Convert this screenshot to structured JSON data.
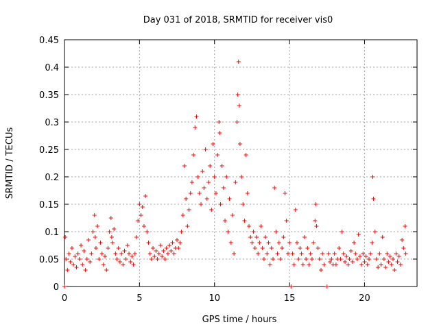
{
  "chart_data": {
    "type": "scatter",
    "title": "Day 031 of 2018, SRMTID for receiver vis0",
    "xlabel": "GPS time / hours",
    "ylabel": "SRMTID / TECUs",
    "xlim": [
      0,
      23.5
    ],
    "ylim": [
      0,
      0.45
    ],
    "xticks": [
      0,
      5,
      10,
      15,
      20
    ],
    "yticks": [
      0,
      0.05,
      0.1,
      0.15,
      0.2,
      0.25,
      0.3,
      0.35,
      0.4,
      0.45
    ],
    "ytick_labels": [
      "0",
      "0.05",
      "0.1",
      "0.15",
      "0.2",
      "0.25",
      "0.3",
      "0.35",
      "0.4",
      "0.45"
    ],
    "xtick_labels": [
      "0",
      "5",
      "10",
      "15",
      "20"
    ],
    "grid": true,
    "marker": "+",
    "marker_color": "#ff0000",
    "series": [
      {
        "name": "SRMTID",
        "points": [
          [
            0.0,
            0.0
          ],
          [
            0.05,
            0.09
          ],
          [
            0.1,
            0.05
          ],
          [
            0.2,
            0.03
          ],
          [
            0.3,
            0.06
          ],
          [
            0.4,
            0.045
          ],
          [
            0.5,
            0.07
          ],
          [
            0.6,
            0.04
          ],
          [
            0.7,
            0.055
          ],
          [
            0.8,
            0.035
          ],
          [
            0.9,
            0.06
          ],
          [
            1.0,
            0.05
          ],
          [
            1.1,
            0.075
          ],
          [
            1.2,
            0.04
          ],
          [
            1.3,
            0.065
          ],
          [
            1.4,
            0.03
          ],
          [
            1.5,
            0.05
          ],
          [
            1.6,
            0.085
          ],
          [
            1.7,
            0.045
          ],
          [
            1.8,
            0.06
          ],
          [
            1.9,
            0.1
          ],
          [
            2.0,
            0.13
          ],
          [
            2.05,
            0.09
          ],
          [
            2.1,
            0.07
          ],
          [
            2.2,
            0.11
          ],
          [
            2.3,
            0.05
          ],
          [
            2.4,
            0.08
          ],
          [
            2.5,
            0.06
          ],
          [
            2.6,
            0.04
          ],
          [
            2.7,
            0.055
          ],
          [
            2.8,
            0.03
          ],
          [
            2.9,
            0.07
          ],
          [
            3.0,
            0.1
          ],
          [
            3.1,
            0.125
          ],
          [
            3.15,
            0.09
          ],
          [
            3.2,
            0.08
          ],
          [
            3.3,
            0.105
          ],
          [
            3.4,
            0.06
          ],
          [
            3.5,
            0.05
          ],
          [
            3.6,
            0.07
          ],
          [
            3.7,
            0.045
          ],
          [
            3.8,
            0.06
          ],
          [
            3.9,
            0.04
          ],
          [
            4.0,
            0.065
          ],
          [
            4.1,
            0.05
          ],
          [
            4.2,
            0.075
          ],
          [
            4.3,
            0.06
          ],
          [
            4.4,
            0.045
          ],
          [
            4.5,
            0.055
          ],
          [
            4.6,
            0.04
          ],
          [
            4.7,
            0.06
          ],
          [
            4.8,
            0.09
          ],
          [
            4.9,
            0.12
          ],
          [
            5.0,
            0.15
          ],
          [
            5.1,
            0.13
          ],
          [
            5.2,
            0.145
          ],
          [
            5.3,
            0.11
          ],
          [
            5.4,
            0.165
          ],
          [
            5.5,
            0.1
          ],
          [
            5.6,
            0.08
          ],
          [
            5.7,
            0.06
          ],
          [
            5.8,
            0.05
          ],
          [
            5.9,
            0.07
          ],
          [
            6.0,
            0.055
          ],
          [
            6.1,
            0.065
          ],
          [
            6.2,
            0.05
          ],
          [
            6.3,
            0.06
          ],
          [
            6.4,
            0.075
          ],
          [
            6.5,
            0.055
          ],
          [
            6.6,
            0.065
          ],
          [
            6.7,
            0.05
          ],
          [
            6.8,
            0.07
          ],
          [
            6.9,
            0.06
          ],
          [
            7.0,
            0.075
          ],
          [
            7.1,
            0.065
          ],
          [
            7.2,
            0.08
          ],
          [
            7.3,
            0.06
          ],
          [
            7.4,
            0.07
          ],
          [
            7.5,
            0.085
          ],
          [
            7.6,
            0.07
          ],
          [
            7.7,
            0.08
          ],
          [
            7.8,
            0.1
          ],
          [
            7.9,
            0.13
          ],
          [
            8.0,
            0.22
          ],
          [
            8.1,
            0.16
          ],
          [
            8.2,
            0.11
          ],
          [
            8.3,
            0.14
          ],
          [
            8.4,
            0.17
          ],
          [
            8.5,
            0.19
          ],
          [
            8.6,
            0.24
          ],
          [
            8.7,
            0.29
          ],
          [
            8.8,
            0.31
          ],
          [
            8.9,
            0.2
          ],
          [
            9.0,
            0.17
          ],
          [
            9.1,
            0.15
          ],
          [
            9.2,
            0.21
          ],
          [
            9.3,
            0.18
          ],
          [
            9.4,
            0.25
          ],
          [
            9.5,
            0.16
          ],
          [
            9.6,
            0.19
          ],
          [
            9.7,
            0.22
          ],
          [
            9.8,
            0.14
          ],
          [
            9.9,
            0.26
          ],
          [
            10.0,
            0.2
          ],
          [
            10.1,
            0.17
          ],
          [
            10.2,
            0.24
          ],
          [
            10.3,
            0.3
          ],
          [
            10.35,
            0.28
          ],
          [
            10.4,
            0.15
          ],
          [
            10.5,
            0.22
          ],
          [
            10.6,
            0.18
          ],
          [
            10.7,
            0.12
          ],
          [
            10.8,
            0.2
          ],
          [
            10.9,
            0.1
          ],
          [
            11.0,
            0.16
          ],
          [
            11.1,
            0.08
          ],
          [
            11.2,
            0.13
          ],
          [
            11.3,
            0.06
          ],
          [
            11.4,
            0.19
          ],
          [
            11.5,
            0.3
          ],
          [
            11.55,
            0.35
          ],
          [
            11.6,
            0.41
          ],
          [
            11.65,
            0.33
          ],
          [
            11.7,
            0.26
          ],
          [
            11.8,
            0.2
          ],
          [
            11.9,
            0.15
          ],
          [
            12.0,
            0.12
          ],
          [
            12.1,
            0.24
          ],
          [
            12.2,
            0.17
          ],
          [
            12.3,
            0.11
          ],
          [
            12.4,
            0.09
          ],
          [
            12.5,
            0.08
          ],
          [
            12.6,
            0.1
          ],
          [
            12.7,
            0.07
          ],
          [
            12.8,
            0.09
          ],
          [
            12.9,
            0.06
          ],
          [
            13.0,
            0.08
          ],
          [
            13.1,
            0.11
          ],
          [
            13.2,
            0.07
          ],
          [
            13.3,
            0.05
          ],
          [
            13.4,
            0.09
          ],
          [
            13.5,
            0.06
          ],
          [
            13.6,
            0.08
          ],
          [
            13.7,
            0.04
          ],
          [
            13.8,
            0.07
          ],
          [
            13.9,
            0.05
          ],
          [
            14.0,
            0.18
          ],
          [
            14.1,
            0.1
          ],
          [
            14.2,
            0.06
          ],
          [
            14.3,
            0.08
          ],
          [
            14.4,
            0.05
          ],
          [
            14.5,
            0.07
          ],
          [
            14.6,
            0.09
          ],
          [
            14.7,
            0.17
          ],
          [
            14.8,
            0.12
          ],
          [
            14.9,
            0.06
          ],
          [
            15.0,
            0.08
          ],
          [
            15.1,
            0.0
          ],
          [
            15.2,
            0.06
          ],
          [
            15.3,
            0.04
          ],
          [
            15.4,
            0.14
          ],
          [
            15.5,
            0.08
          ],
          [
            15.6,
            0.05
          ],
          [
            15.7,
            0.07
          ],
          [
            15.8,
            0.06
          ],
          [
            15.9,
            0.04
          ],
          [
            16.0,
            0.09
          ],
          [
            16.1,
            0.05
          ],
          [
            16.2,
            0.07
          ],
          [
            16.3,
            0.04
          ],
          [
            16.4,
            0.06
          ],
          [
            16.5,
            0.05
          ],
          [
            16.6,
            0.08
          ],
          [
            16.7,
            0.12
          ],
          [
            16.75,
            0.15
          ],
          [
            16.8,
            0.11
          ],
          [
            16.9,
            0.07
          ],
          [
            17.0,
            0.05
          ],
          [
            17.1,
            0.03
          ],
          [
            17.2,
            0.06
          ],
          [
            17.3,
            0.04
          ],
          [
            17.5,
            0.0
          ],
          [
            17.6,
            0.06
          ],
          [
            17.7,
            0.045
          ],
          [
            17.8,
            0.05
          ],
          [
            17.9,
            0.04
          ],
          [
            18.0,
            0.06
          ],
          [
            18.1,
            0.04
          ],
          [
            18.2,
            0.05
          ],
          [
            18.3,
            0.07
          ],
          [
            18.4,
            0.05
          ],
          [
            18.5,
            0.1
          ],
          [
            18.6,
            0.06
          ],
          [
            18.7,
            0.045
          ],
          [
            18.8,
            0.055
          ],
          [
            18.9,
            0.04
          ],
          [
            19.0,
            0.05
          ],
          [
            19.1,
            0.065
          ],
          [
            19.2,
            0.045
          ],
          [
            19.3,
            0.08
          ],
          [
            19.4,
            0.06
          ],
          [
            19.5,
            0.05
          ],
          [
            19.6,
            0.095
          ],
          [
            19.7,
            0.055
          ],
          [
            19.8,
            0.04
          ],
          [
            19.9,
            0.06
          ],
          [
            20.0,
            0.045
          ],
          [
            20.1,
            0.055
          ],
          [
            20.2,
            0.04
          ],
          [
            20.3,
            0.05
          ],
          [
            20.4,
            0.06
          ],
          [
            20.5,
            0.08
          ],
          [
            20.55,
            0.2
          ],
          [
            20.6,
            0.16
          ],
          [
            20.7,
            0.1
          ],
          [
            20.8,
            0.05
          ],
          [
            20.9,
            0.035
          ],
          [
            21.0,
            0.06
          ],
          [
            21.1,
            0.04
          ],
          [
            21.2,
            0.09
          ],
          [
            21.3,
            0.05
          ],
          [
            21.4,
            0.035
          ],
          [
            21.5,
            0.06
          ],
          [
            21.6,
            0.045
          ],
          [
            21.7,
            0.055
          ],
          [
            21.8,
            0.04
          ],
          [
            21.9,
            0.05
          ],
          [
            22.0,
            0.03
          ],
          [
            22.1,
            0.06
          ],
          [
            22.2,
            0.045
          ],
          [
            22.3,
            0.055
          ],
          [
            22.4,
            0.04
          ],
          [
            22.5,
            0.085
          ],
          [
            22.6,
            0.07
          ],
          [
            22.7,
            0.11
          ],
          [
            22.75,
            0.06
          ]
        ]
      }
    ]
  }
}
